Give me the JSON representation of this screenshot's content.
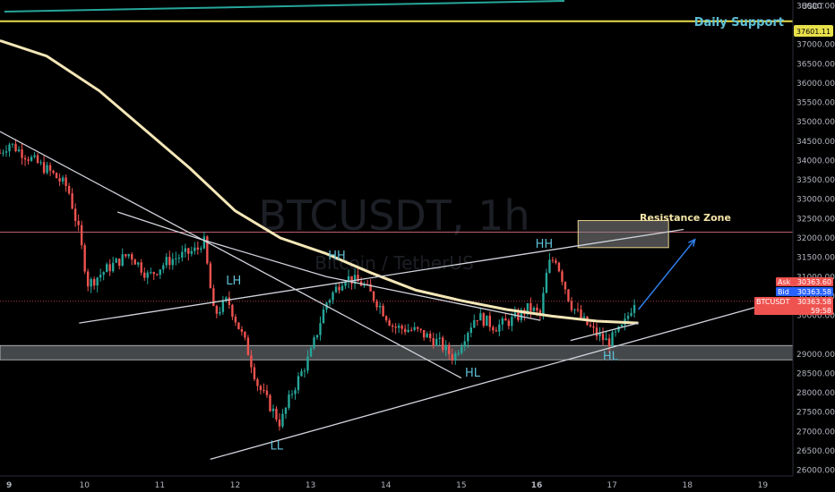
{
  "watermark": {
    "symbol": "BTCUSDT, 1h",
    "description": "Bitcoin / TetherUS"
  },
  "axis": {
    "currency": "USDT",
    "y_ticks": [
      "38000.00",
      "37000.00",
      "36500.00",
      "36000.00",
      "35500.00",
      "35000.00",
      "34500.00",
      "34000.00",
      "33500.00",
      "33000.00",
      "32500.00",
      "32000.00",
      "31500.00",
      "31000.00",
      "30500.00",
      "30000.00",
      "29000.00",
      "28500.00",
      "28000.00",
      "27500.00",
      "27000.00",
      "26500.00",
      "26000.00"
    ],
    "x_ticks": [
      "9",
      "10",
      "11",
      "12",
      "13",
      "14",
      "15",
      "16",
      "17",
      "18",
      "19"
    ],
    "bold_x_ticks": [
      "9",
      "16"
    ]
  },
  "price_tags": {
    "daily_support_value": "37601.11",
    "ask_label": "Ask",
    "ask_value": "30363.60",
    "bid_label": "Bid",
    "bid_value": "30363.58",
    "last_label": "BTCUSDT",
    "last_value": "30363.58",
    "countdown": "59:58"
  },
  "annotations": {
    "daily_support": "Daily Support",
    "resistance_zone": "Resistance Zone",
    "swing_labels": [
      {
        "text": "LH",
        "x": 11.98,
        "y": 30800
      },
      {
        "text": "HH",
        "x": 13.35,
        "y": 31450
      },
      {
        "text": "HH",
        "x": 16.1,
        "y": 31750
      },
      {
        "text": "HL",
        "x": 15.15,
        "y": 28420
      },
      {
        "text": "HL",
        "x": 16.98,
        "y": 28840
      },
      {
        "text": "LL",
        "x": 12.55,
        "y": 26530
      }
    ]
  },
  "colors": {
    "background": "#000000",
    "bull_candle": "#26a69a",
    "bear_candle": "#ef5350",
    "moving_average": "#f4e7b7",
    "daily_support_line": "#e8e04a",
    "trendline": "#d1d4dc",
    "projection_arrow": "#2f7ee8",
    "cyan_text": "#5fc0d6"
  },
  "chart_data": {
    "type": "candlestick",
    "symbol": "BTCUSDT",
    "interval": "1h",
    "x_axis": "day of month",
    "xlim": [
      8.88,
      19.4
    ],
    "ylim": [
      25850,
      38150
    ],
    "daily_support": 37601.11,
    "current_price": 30363.58,
    "resistance_zone": {
      "x": [
        16.55,
        17.75
      ],
      "y": [
        31750,
        32450
      ]
    },
    "resistance_line": 32150,
    "support_zone": {
      "y": [
        28850,
        29220
      ]
    },
    "current_price_line": 30363.58,
    "series": [
      {
        "name": "trendline-1",
        "points": [
          [
            10.44,
            32670
          ],
          [
            11.52,
            31980
          ],
          [
            13.21,
            31000
          ],
          [
            16.05,
            29870
          ]
        ]
      },
      {
        "name": "trendline-2",
        "points": [
          [
            8.88,
            34750
          ],
          [
            15.0,
            28380
          ]
        ]
      },
      {
        "name": "trendline-3",
        "points": [
          [
            9.93,
            29800
          ],
          [
            17.95,
            32220
          ]
        ]
      },
      {
        "name": "trendline-4",
        "points": [
          [
            11.67,
            26280
          ],
          [
            19.0,
            30260
          ]
        ]
      },
      {
        "name": "trendline-5",
        "points": [
          [
            16.45,
            29350
          ],
          [
            17.35,
            29800
          ]
        ]
      },
      {
        "name": "moving-average",
        "points": [
          [
            8.88,
            37100
          ],
          [
            9.5,
            36700
          ],
          [
            10.2,
            35800
          ],
          [
            10.8,
            34800
          ],
          [
            11.4,
            33800
          ],
          [
            12.0,
            32700
          ],
          [
            12.6,
            32000
          ],
          [
            13.2,
            31600
          ],
          [
            13.8,
            31100
          ],
          [
            14.4,
            30650
          ],
          [
            15.0,
            30380
          ],
          [
            15.6,
            30150
          ],
          [
            16.2,
            29980
          ],
          [
            16.8,
            29850
          ],
          [
            17.35,
            29800
          ]
        ]
      },
      {
        "name": "projection",
        "points": [
          [
            17.35,
            30150
          ],
          [
            18.1,
            31960
          ]
        ]
      }
    ],
    "price_path": [
      [
        8.88,
        34200
      ],
      [
        9.0,
        34450
      ],
      [
        9.25,
        34100
      ],
      [
        9.55,
        33700
      ],
      [
        9.78,
        33300
      ],
      [
        9.92,
        32200
      ],
      [
        10.05,
        30800
      ],
      [
        10.3,
        31200
      ],
      [
        10.6,
        31600
      ],
      [
        10.85,
        31000
      ],
      [
        11.1,
        31400
      ],
      [
        11.5,
        31700
      ],
      [
        11.58,
        32000
      ],
      [
        11.72,
        30000
      ],
      [
        11.9,
        30400
      ],
      [
        12.15,
        29200
      ],
      [
        12.3,
        28200
      ],
      [
        12.45,
        27700
      ],
      [
        12.6,
        27200
      ],
      [
        12.75,
        28000
      ],
      [
        13.0,
        29000
      ],
      [
        13.2,
        30300
      ],
      [
        13.45,
        31000
      ],
      [
        13.7,
        30800
      ],
      [
        13.9,
        30300
      ],
      [
        14.1,
        29700
      ],
      [
        14.4,
        29600
      ],
      [
        14.7,
        29300
      ],
      [
        14.9,
        28900
      ],
      [
        15.05,
        29500
      ],
      [
        15.2,
        30000
      ],
      [
        15.45,
        29700
      ],
      [
        15.7,
        29900
      ],
      [
        15.9,
        30200
      ],
      [
        16.05,
        30000
      ],
      [
        16.15,
        31300
      ],
      [
        16.25,
        31500
      ],
      [
        16.45,
        30300
      ],
      [
        16.6,
        29900
      ],
      [
        16.8,
        29500
      ],
      [
        16.95,
        29300
      ],
      [
        17.15,
        29700
      ],
      [
        17.3,
        30400
      ]
    ]
  }
}
